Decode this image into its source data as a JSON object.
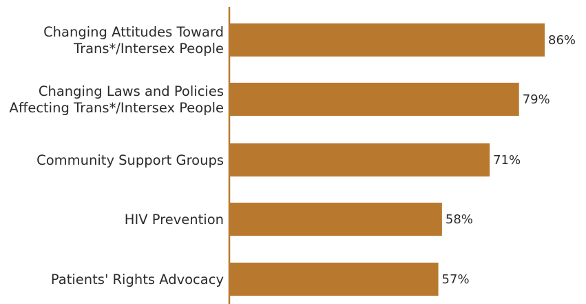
{
  "chart_data": {
    "type": "bar",
    "orientation": "horizontal",
    "categories": [
      [
        "Changing Attitudes Toward",
        "Trans*/Intersex People"
      ],
      [
        "Changing Laws and Policies",
        "Affecting Trans*/Intersex People"
      ],
      [
        "Community Support Groups"
      ],
      [
        "HIV Prevention"
      ],
      [
        "Patients' Rights Advocacy"
      ]
    ],
    "values": [
      86,
      79,
      71,
      58,
      57
    ],
    "value_labels": [
      "86%",
      "79%",
      "71%",
      "58%",
      "57%"
    ],
    "xlim": [
      0,
      100
    ],
    "grid": false,
    "legend": "none",
    "colors": {
      "bar": "#b8782e",
      "axis": "#b8782e",
      "text": "#2b2b2b"
    }
  }
}
